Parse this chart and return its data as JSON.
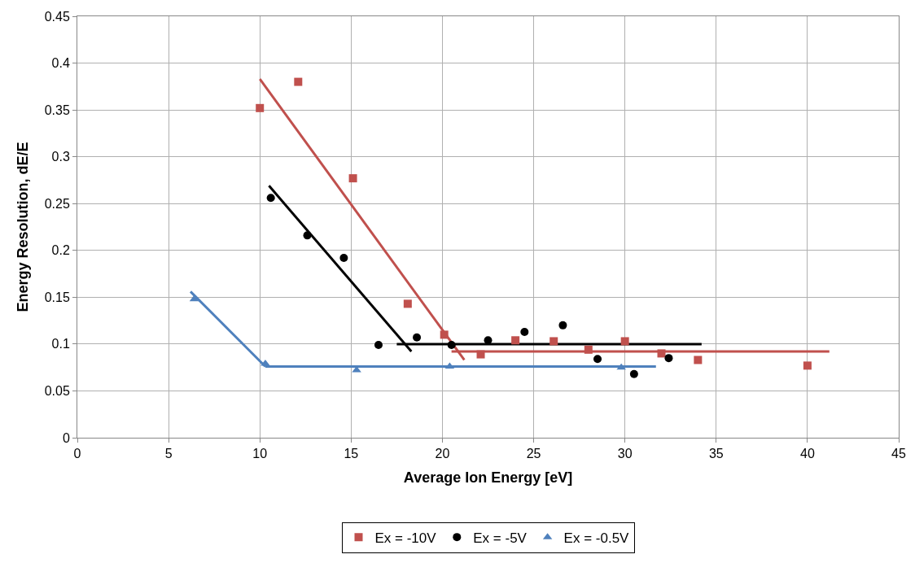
{
  "chart_data": {
    "type": "scatter",
    "xlabel": "Average Ion Energy [eV]",
    "ylabel": "Energy Resolution, dE/E",
    "xlim": [
      0,
      45
    ],
    "xticks": [
      0,
      5,
      10,
      15,
      20,
      25,
      30,
      35,
      40,
      45
    ],
    "ylim": [
      0,
      0.45
    ],
    "yticks": [
      0,
      0.05,
      0.1,
      0.15,
      0.2,
      0.25,
      0.3,
      0.35,
      0.4,
      0.45
    ],
    "grid": true,
    "legend": "bottom",
    "series": [
      {
        "name": "Ex = -10V",
        "color": "#c0504d",
        "marker": "square",
        "x": [
          10.0,
          12.1,
          15.1,
          18.1,
          20.1,
          22.1,
          24.0,
          26.1,
          28.0,
          30.0,
          32.0,
          34.0,
          40.0
        ],
        "values": [
          0.352,
          0.38,
          0.277,
          0.143,
          0.11,
          0.089,
          0.104,
          0.103,
          0.094,
          0.103,
          0.09,
          0.083,
          0.077
        ]
      },
      {
        "name": "Ex = -5V",
        "color": "#000000",
        "marker": "circle",
        "x": [
          10.6,
          12.6,
          14.6,
          16.5,
          18.6,
          20.5,
          22.5,
          24.5,
          26.6,
          28.5,
          30.5,
          32.4
        ],
        "values": [
          0.256,
          0.216,
          0.192,
          0.099,
          0.107,
          0.099,
          0.104,
          0.113,
          0.12,
          0.084,
          0.068,
          0.085
        ]
      },
      {
        "name": "Ex = -0.5V",
        "color": "#4f81bd",
        "marker": "triangle",
        "x": [
          6.4,
          10.3,
          15.3,
          20.4,
          29.8
        ],
        "values": [
          0.148,
          0.079,
          0.072,
          0.076,
          0.075
        ]
      },
      {
        "type": "line",
        "color": "#c0504d",
        "x": [
          10.0,
          21.2
        ],
        "values": [
          0.383,
          0.083
        ]
      },
      {
        "type": "line",
        "color": "#c0504d",
        "x": [
          20.5,
          41.2
        ],
        "values": [
          0.092,
          0.092
        ]
      },
      {
        "type": "line",
        "color": "#000000",
        "x": [
          10.5,
          18.3
        ],
        "values": [
          0.269,
          0.092
        ]
      },
      {
        "type": "line",
        "color": "#000000",
        "x": [
          17.5,
          34.2
        ],
        "values": [
          0.1,
          0.1
        ]
      },
      {
        "type": "line",
        "color": "#4f81bd",
        "x": [
          6.2,
          10.3
        ],
        "values": [
          0.156,
          0.076
        ]
      },
      {
        "type": "line",
        "color": "#4f81bd",
        "x": [
          10.3,
          31.7
        ],
        "values": [
          0.076,
          0.076
        ]
      }
    ]
  }
}
